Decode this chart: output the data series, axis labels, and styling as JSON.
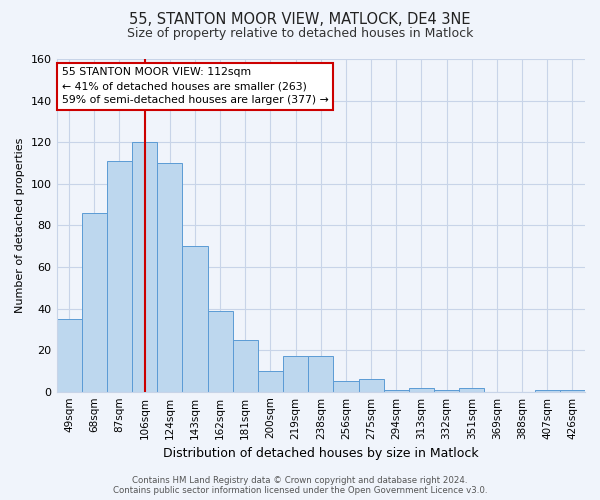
{
  "title_line1": "55, STANTON MOOR VIEW, MATLOCK, DE4 3NE",
  "title_line2": "Size of property relative to detached houses in Matlock",
  "xlabel": "Distribution of detached houses by size in Matlock",
  "ylabel": "Number of detached properties",
  "footer_line1": "Contains HM Land Registry data © Crown copyright and database right 2024.",
  "footer_line2": "Contains public sector information licensed under the Open Government Licence v3.0.",
  "categories": [
    "49sqm",
    "68sqm",
    "87sqm",
    "106sqm",
    "124sqm",
    "143sqm",
    "162sqm",
    "181sqm",
    "200sqm",
    "219sqm",
    "238sqm",
    "256sqm",
    "275sqm",
    "294sqm",
    "313sqm",
    "332sqm",
    "351sqm",
    "369sqm",
    "388sqm",
    "407sqm",
    "426sqm"
  ],
  "values": [
    35,
    86,
    111,
    120,
    110,
    70,
    39,
    25,
    10,
    17,
    17,
    5,
    6,
    1,
    2,
    1,
    2,
    0,
    0,
    1,
    1
  ],
  "bar_color": "#bdd7ee",
  "bar_edge_color": "#5b9bd5",
  "grid_color": "#c8d4e8",
  "background_color": "#f0f4fb",
  "vline_x": 3,
  "vline_color": "#cc0000",
  "annotation_text": "55 STANTON MOOR VIEW: 112sqm\n← 41% of detached houses are smaller (263)\n59% of semi-detached houses are larger (377) →",
  "annotation_box_color": "#ffffff",
  "annotation_box_edge": "#cc0000",
  "ylim": [
    0,
    160
  ],
  "yticks": [
    0,
    20,
    40,
    60,
    80,
    100,
    120,
    140,
    160
  ]
}
